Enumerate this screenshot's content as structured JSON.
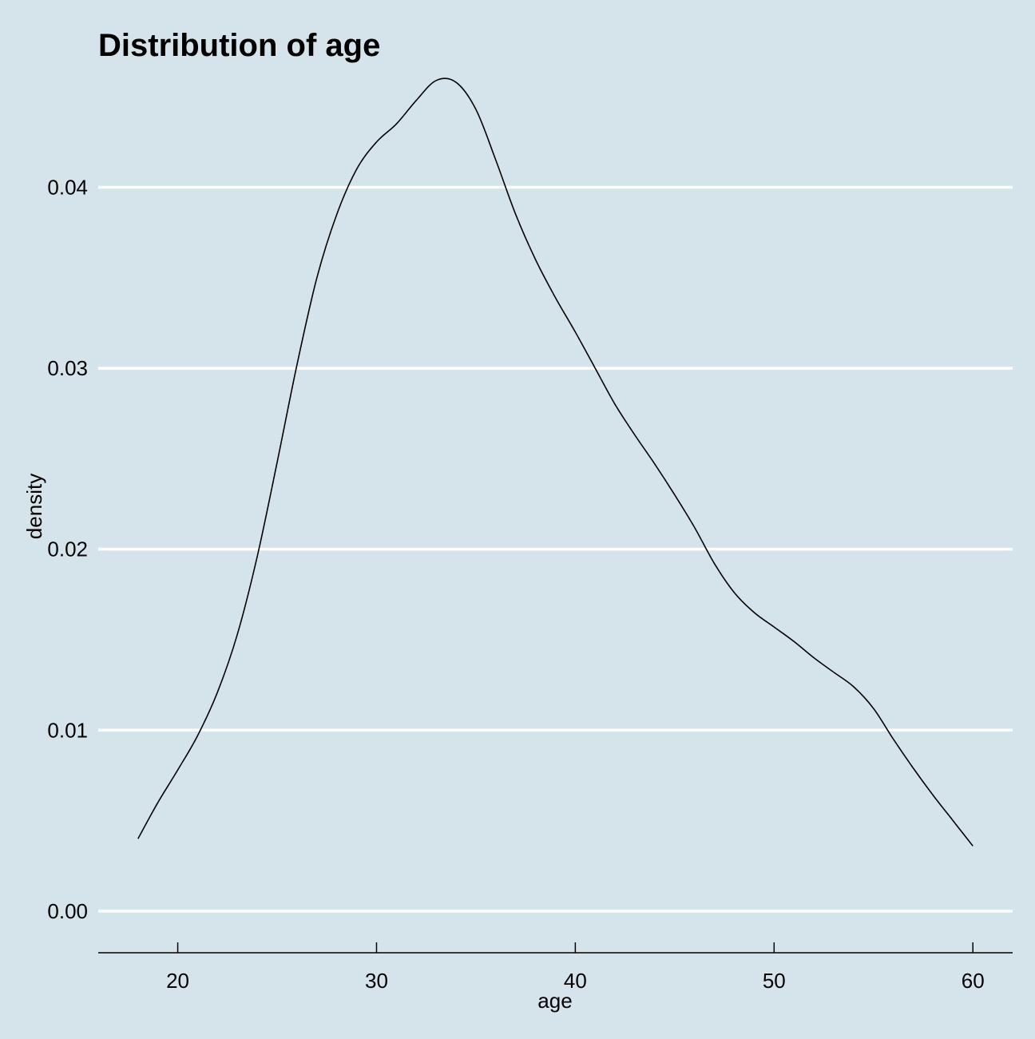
{
  "chart_data": {
    "type": "line",
    "title": "Distribution of age",
    "xlabel": "age",
    "ylabel": "density",
    "xlim": [
      16,
      62
    ],
    "ylim": [
      -0.0023,
      0.0462
    ],
    "x_ticks": [
      20,
      30,
      40,
      50,
      60
    ],
    "x_tick_labels": [
      "20",
      "30",
      "40",
      "50",
      "60"
    ],
    "y_ticks": [
      0.0,
      0.01,
      0.02,
      0.03,
      0.04
    ],
    "y_tick_labels": [
      "0.00",
      "0.01",
      "0.02",
      "0.03",
      "0.04"
    ],
    "grid": "horizontal",
    "legend": "none",
    "colors": {
      "background": "#d5e4eb",
      "gridline": "#ffffff",
      "line": "#000000",
      "axis": "#000000"
    },
    "series": [
      {
        "x": [
          18,
          19,
          20,
          21,
          22,
          23,
          24,
          25,
          26,
          27,
          28,
          29,
          30,
          31,
          32,
          33,
          34,
          35,
          36,
          37,
          38,
          39,
          40,
          41,
          42,
          43,
          44,
          45,
          46,
          47,
          48,
          49,
          50,
          51,
          52,
          53,
          54,
          55,
          56,
          57,
          58,
          59,
          60
        ],
        "y": [
          0.004,
          0.006,
          0.0078,
          0.0097,
          0.0121,
          0.0153,
          0.0196,
          0.0248,
          0.0302,
          0.035,
          0.0385,
          0.041,
          0.0425,
          0.0435,
          0.0448,
          0.0459,
          0.0458,
          0.0443,
          0.0415,
          0.0385,
          0.036,
          0.0339,
          0.032,
          0.03,
          0.028,
          0.0263,
          0.0247,
          0.023,
          0.0212,
          0.0192,
          0.0176,
          0.0165,
          0.0157,
          0.0149,
          0.014,
          0.0132,
          0.0124,
          0.0112,
          0.0095,
          0.0079,
          0.0064,
          0.005,
          0.0036
        ]
      }
    ]
  }
}
